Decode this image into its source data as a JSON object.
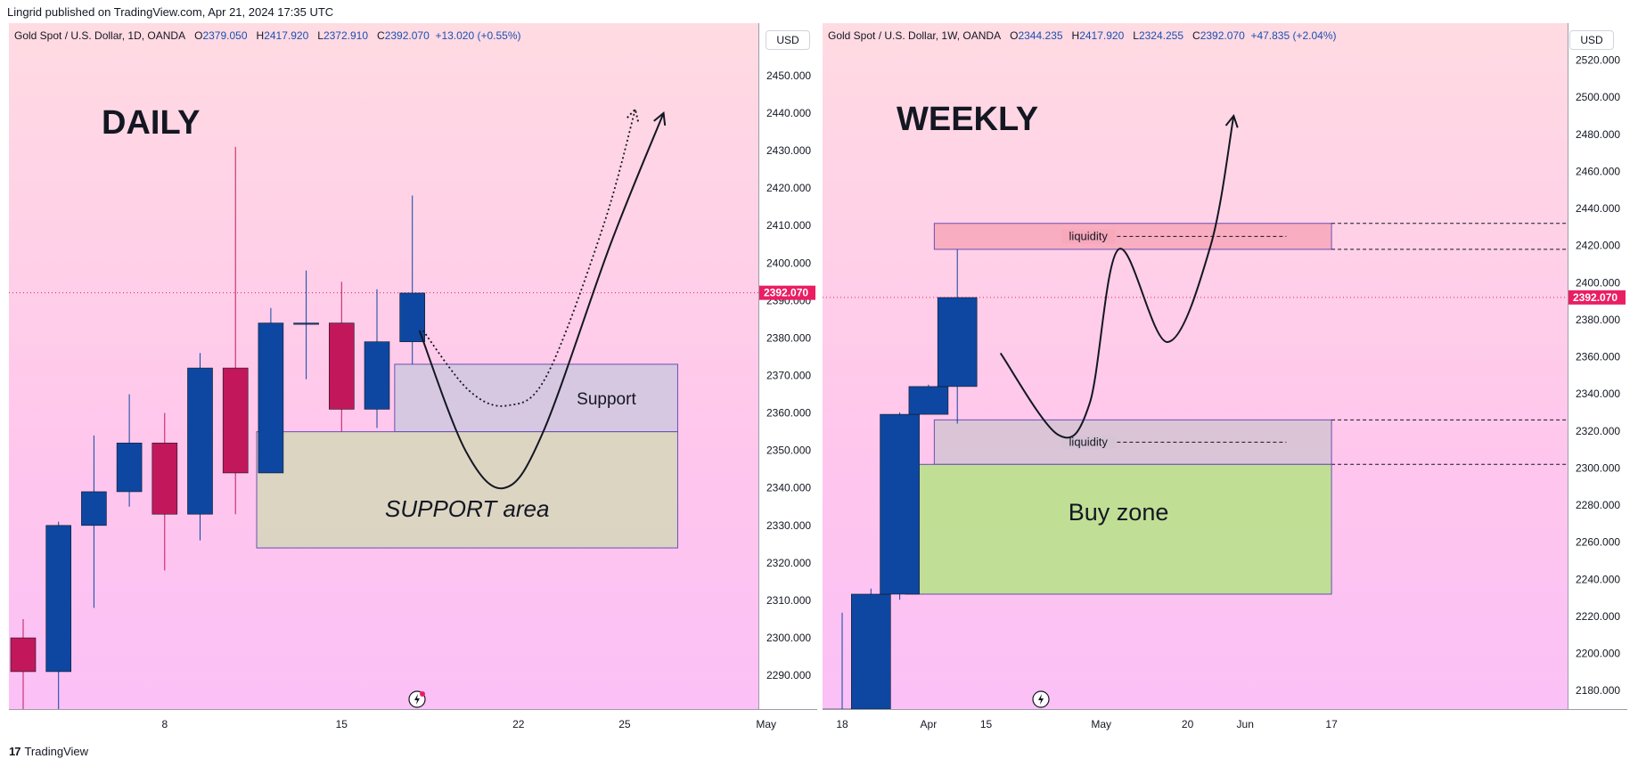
{
  "header": {
    "publisher": "Lingrid published on TradingView.com, Apr 21, 2024 17:35 UTC"
  },
  "footer": {
    "brand": "TradingView",
    "logo": "17"
  },
  "colors": {
    "bull": "#0d47a1",
    "bear": "#c2185b",
    "price_tag": "#e91e63",
    "support_box": "#d8d6bd",
    "support_top": "#d3c8e0",
    "buy_zone": "#b9e18b",
    "liquidity_top": "#f7a8bb",
    "liquidity_bottom": "#d6c3d4"
  },
  "chart_data": [
    {
      "type": "candlestick",
      "title": "Gold Spot / U.S. Dollar, 1D, OANDA",
      "ohlc_readout": {
        "o_label": "O",
        "o": "2379.050",
        "h_label": "H",
        "h": "2417.920",
        "l_label": "L",
        "l": "2372.910",
        "c_label": "C",
        "c": "2392.070",
        "change": "+13.020 (+0.55%)"
      },
      "currency": "USD",
      "annotation": "DAILY",
      "last_price": 2392.07,
      "last_price_label": "2392.070",
      "ylim": [
        2281,
        2464
      ],
      "y_ticks": [
        "2450.000",
        "2440.000",
        "2430.000",
        "2420.000",
        "2410.000",
        "2400.000",
        "2390.000",
        "2380.000",
        "2370.000",
        "2360.000",
        "2350.000",
        "2340.000",
        "2330.000",
        "2320.000",
        "2310.000",
        "2300.000",
        "2290.000"
      ],
      "x_ticks": [
        {
          "label": "8",
          "bar": 4
        },
        {
          "label": "15",
          "bar": 9
        },
        {
          "label": "22",
          "bar": 14
        },
        {
          "label": "25",
          "bar": 17
        },
        {
          "label": "May",
          "bar": 21
        }
      ],
      "candles": [
        {
          "o": 2300,
          "h": 2305,
          "l": 2281,
          "c": 2291
        },
        {
          "o": 2291,
          "h": 2331,
          "l": 2281,
          "c": 2330
        },
        {
          "o": 2330,
          "h": 2354,
          "l": 2308,
          "c": 2339
        },
        {
          "o": 2339,
          "h": 2365,
          "l": 2335,
          "c": 2352
        },
        {
          "o": 2352,
          "h": 2360,
          "l": 2318,
          "c": 2333
        },
        {
          "o": 2333,
          "h": 2376,
          "l": 2326,
          "c": 2372
        },
        {
          "o": 2372,
          "h": 2431,
          "l": 2333,
          "c": 2344
        },
        {
          "o": 2344,
          "h": 2388,
          "l": 2344,
          "c": 2384
        },
        {
          "o": 2384,
          "h": 2398,
          "l": 2369,
          "c": 2384
        },
        {
          "o": 2384,
          "h": 2395,
          "l": 2355,
          "c": 2361
        },
        {
          "o": 2361,
          "h": 2393,
          "l": 2356,
          "c": 2379
        },
        {
          "o": 2379,
          "h": 2418,
          "l": 2373,
          "c": 2392
        }
      ],
      "zones": [
        {
          "label": "Support",
          "x0": 10.5,
          "x1": 18.5,
          "y0": 2355,
          "y1": 2373
        },
        {
          "label": "SUPPORT area",
          "x0": 6.6,
          "x1": 18.5,
          "y0": 2324,
          "y1": 2355
        }
      ],
      "paths": [
        {
          "style": "dotted",
          "points": [
            [
              11.3,
              2382
            ],
            [
              12.6,
              2366
            ],
            [
              13.7,
              2362
            ],
            [
              14.8,
              2370
            ],
            [
              16.4,
              2410
            ],
            [
              17.3,
              2441
            ]
          ]
        },
        {
          "style": "solid",
          "points": [
            [
              11.2,
              2382
            ],
            [
              12.5,
              2350
            ],
            [
              13.6,
              2340
            ],
            [
              14.7,
              2355
            ],
            [
              16.6,
              2405
            ],
            [
              18.1,
              2440
            ]
          ]
        }
      ]
    },
    {
      "type": "candlestick",
      "title": "Gold Spot / U.S. Dollar, 1W, OANDA",
      "ohlc_readout": {
        "o_label": "O",
        "o": "2344.235",
        "h_label": "H",
        "h": "2417.920",
        "l_label": "L",
        "l": "2324.255",
        "c_label": "C",
        "c": "2392.070",
        "change": "+47.835 (+2.04%)"
      },
      "currency": "USD",
      "annotation": "WEEKLY",
      "last_price": 2392.07,
      "last_price_label": "2392.070",
      "ylim": [
        2170,
        2540
      ],
      "y_ticks": [
        "2520.000",
        "2500.000",
        "2480.000",
        "2460.000",
        "2440.000",
        "2420.000",
        "2400.000",
        "2380.000",
        "2360.000",
        "2340.000",
        "2320.000",
        "2300.000",
        "2280.000",
        "2260.000",
        "2240.000",
        "2220.000",
        "2200.000",
        "2180.000"
      ],
      "x_ticks": [
        {
          "label": "18",
          "bar": 0
        },
        {
          "label": "Apr",
          "bar": 3
        },
        {
          "label": "15",
          "bar": 5
        },
        {
          "label": "May",
          "bar": 9
        },
        {
          "label": "20",
          "bar": 12
        },
        {
          "label": "Jun",
          "bar": 14
        },
        {
          "label": "17",
          "bar": 17
        }
      ],
      "candles": [
        {
          "o": 2170,
          "h": 2222,
          "l": 2170,
          "c": 2170
        },
        {
          "o": 2170,
          "h": 2235,
          "l": 2170,
          "c": 2232
        },
        {
          "o": 2232,
          "h": 2330,
          "l": 2229,
          "c": 2329
        },
        {
          "o": 2329,
          "h": 2345,
          "l": 2329,
          "c": 2344
        },
        {
          "o": 2344,
          "h": 2418,
          "l": 2324,
          "c": 2392
        }
      ],
      "zones": [
        {
          "label": "liquidity",
          "x0": 3.2,
          "x1": 17.0,
          "y0": 2418,
          "y1": 2432
        },
        {
          "label": "liquidity",
          "x0": 3.2,
          "x1": 17.0,
          "y0": 2302,
          "y1": 2326
        },
        {
          "label": "Buy zone",
          "x0": 2.2,
          "x1": 17.0,
          "y0": 2232,
          "y1": 2302
        }
      ],
      "paths": [
        {
          "style": "solid",
          "points": [
            [
              5.5,
              2362
            ],
            [
              7.5,
              2318
            ],
            [
              8.6,
              2335
            ],
            [
              9.6,
              2418
            ],
            [
              11.3,
              2368
            ],
            [
              12.8,
              2420
            ],
            [
              13.6,
              2490
            ]
          ]
        }
      ]
    }
  ]
}
